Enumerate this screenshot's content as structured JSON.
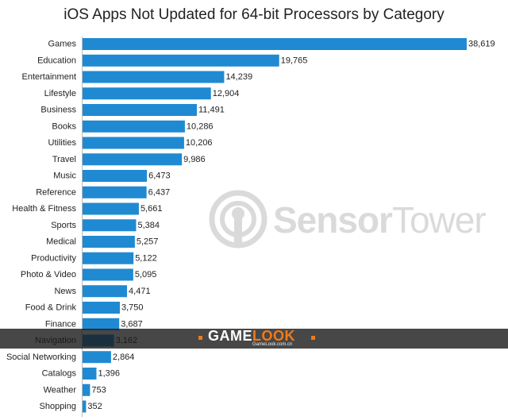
{
  "chart_data": {
    "type": "bar",
    "orientation": "horizontal",
    "title": "iOS Apps Not Updated for 64-bit Processors by Category",
    "categories": [
      "Games",
      "Education",
      "Entertainment",
      "Lifestyle",
      "Business",
      "Books",
      "Utilities",
      "Travel",
      "Music",
      "Reference",
      "Health & Fitness",
      "Sports",
      "Medical",
      "Productivity",
      "Photo & Video",
      "News",
      "Food & Drink",
      "Finance",
      "Navigation",
      "Social Networking",
      "Catalogs",
      "Weather",
      "Shopping"
    ],
    "values": [
      38619,
      19765,
      14239,
      12904,
      11491,
      10286,
      10206,
      9986,
      6473,
      6437,
      5661,
      5384,
      5257,
      5122,
      5095,
      4471,
      3750,
      3687,
      3162,
      2864,
      1396,
      753,
      352
    ],
    "value_labels": [
      "38,619",
      "19,765",
      "14,239",
      "12,904",
      "11,491",
      "10,286",
      "10,206",
      "9,986",
      "6,473",
      "6,437",
      "5,661",
      "5,384",
      "5,257",
      "5,122",
      "5,095",
      "4,471",
      "3,750",
      "3,687",
      "3,162",
      "2,864",
      "1,396",
      "753",
      "352"
    ],
    "bar_color": "#1f8ad2",
    "grid": false,
    "legend": "none"
  },
  "watermark": {
    "brand_bold": "Sensor",
    "brand_light": "Tower"
  },
  "overlay_banner": {
    "brand_part1": "GAME",
    "brand_part2": "LOOK",
    "subtext": "GameLook.com.cn",
    "accent_color": "#f07a1a"
  }
}
